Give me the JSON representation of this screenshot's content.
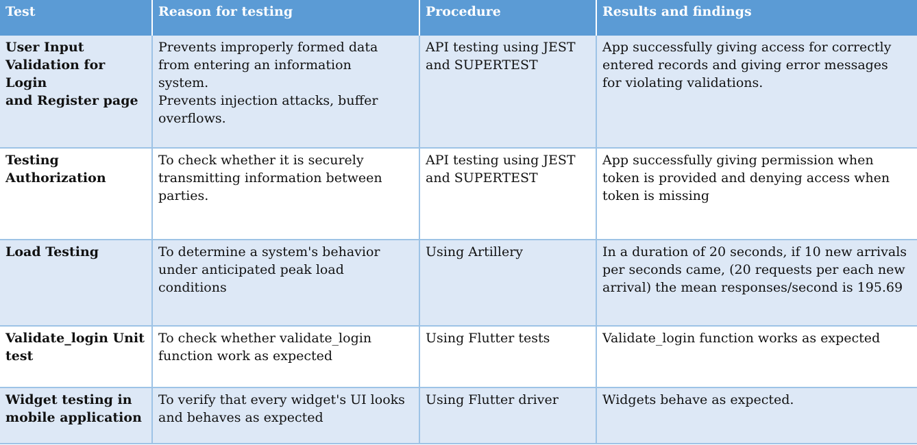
{
  "table": {
    "headers": [
      "Test",
      "Reason for testing",
      "Procedure",
      "Results and findings"
    ],
    "rows": [
      {
        "test": "User Input\nValidation for Login\nand Register page",
        "reason": "Prevents improperly formed data\nfrom entering an information\nsystem.\nPrevents injection attacks, buffer\noverflows.",
        "procedure": "API testing using JEST\nand SUPERTEST",
        "results": "App successfully giving access for correctly\nentered records and giving error messages\nfor violating validations."
      },
      {
        "test": "Testing\nAuthorization",
        "reason": "To check whether it is securely\ntransmitting information between\nparties.",
        "procedure": "API testing using JEST\nand SUPERTEST",
        "results": "App successfully giving permission when\ntoken is provided and denying access when\ntoken is missing"
      },
      {
        "test": "Load Testing",
        "reason": "To determine a system's behavior\nunder anticipated peak load\nconditions",
        "procedure": "Using Artillery",
        "results": "In a duration of 20 seconds, if 10 new arrivals\nper seconds came, (20 requests per each new\narrival) the mean responses/second is 195.69"
      },
      {
        "test": "Validate_login Unit\ntest",
        "reason": "To check whether validate_login\nfunction work as expected",
        "procedure": "Using Flutter tests",
        "results": "Validate_login function works as expected"
      },
      {
        "test": "Widget testing in\nmobile application",
        "reason": "To verify that every widget's UI looks\nand behaves as expected",
        "procedure": "Using Flutter driver",
        "results": "Widgets behave as expected."
      }
    ]
  },
  "colors": {
    "header_bg": "#5b9bd5",
    "shaded_row_bg": "#dde8f6",
    "border": "#9dc3e6"
  }
}
